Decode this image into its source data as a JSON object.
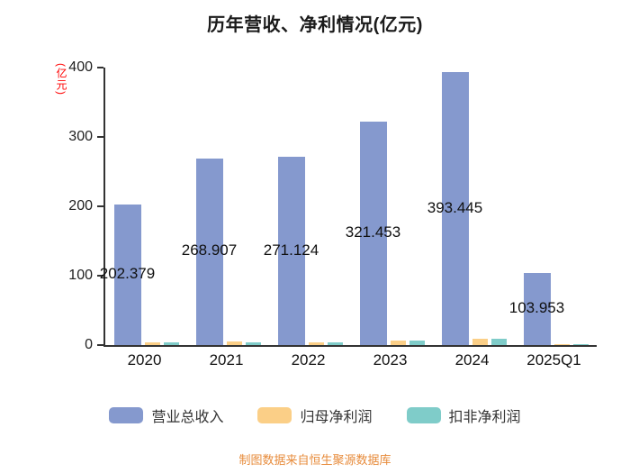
{
  "chart_data": {
    "type": "bar",
    "title": "历年营收、净利情况(亿元)",
    "ylabel": "(亿元)",
    "xlabel": "",
    "categories": [
      "2020",
      "2021",
      "2022",
      "2023",
      "2024",
      "2025Q1"
    ],
    "series": [
      {
        "name": "营业总收入",
        "color": "#8599CE",
        "values": [
          202.379,
          268.907,
          271.124,
          321.453,
          393.445,
          103.953
        ],
        "labels": [
          "202.379",
          "268.907",
          "271.124",
          "321.453",
          "393.445",
          "103.953"
        ]
      },
      {
        "name": "归母净利润",
        "color": "#FBCF87",
        "values": [
          4.5,
          5,
          4.5,
          6,
          9,
          1.8
        ]
      },
      {
        "name": "扣非净利润",
        "color": "#7FCCC9",
        "values": [
          3.5,
          4.5,
          4.5,
          6.5,
          9,
          1.5
        ]
      }
    ],
    "ylim": [
      0,
      400
    ],
    "yticks": [
      0,
      100,
      200,
      300,
      400
    ],
    "grid": false,
    "legend_position": "bottom"
  },
  "colors": {
    "axis": "#333333",
    "title_text": "#1a1a1a",
    "unit_label": "#ff0000",
    "footer_text": "#E78B3B"
  },
  "footer": {
    "text": "制图数据来自恒生聚源数据库"
  }
}
